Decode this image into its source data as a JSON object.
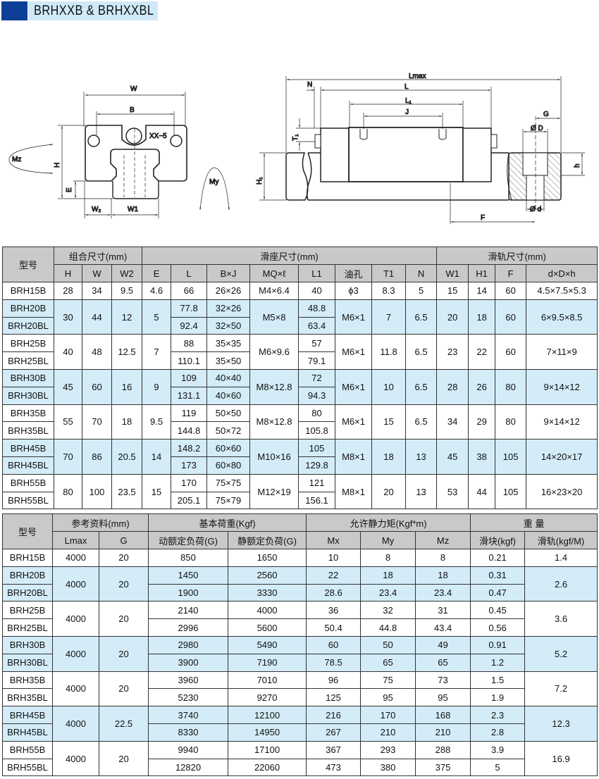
{
  "title": "BRHXXB & BRHXXBL",
  "colors": {
    "title_block": "#0d3f96",
    "title_bar": "#cfe9f8",
    "header_bg": "#c9c9c9",
    "row_highlight": "#d3ecf8",
    "dimension_label": "#2a9fd6"
  },
  "drawing": {
    "front": {
      "W": "W",
      "B": "B",
      "screw": "XX−5",
      "Mz": "Mz",
      "H": "H",
      "E": "E",
      "W2": "W₂",
      "W1": "W1",
      "My": "My"
    },
    "side": {
      "Lmax": "Lmax",
      "N": "N",
      "L": "L",
      "L1": "L₁",
      "J": "J",
      "T1": "T₁",
      "H1": "H₁",
      "G": "G",
      "D": "Ø D",
      "h": "h",
      "d": "Ø d",
      "F": "F"
    }
  },
  "table1": {
    "model_header": "型号",
    "group_headers": [
      {
        "label": "组合尺寸(mm)",
        "span": 3
      },
      {
        "label": "滑座尺寸(mm)",
        "span": 8
      },
      {
        "label": "滑轨尺寸(mm)",
        "span": 4
      }
    ],
    "columns": [
      "H",
      "W",
      "W2",
      "E",
      "L",
      "B×J",
      "MQ×ℓ",
      "L1",
      "油孔",
      "T1",
      "N",
      "W1",
      "H1",
      "F",
      "d×D×h"
    ],
    "groups": [
      {
        "cells": [
          [
            "BRH15B"
          ],
          "28",
          "34",
          "9.5",
          "4.6",
          [
            "66"
          ],
          [
            "26×26"
          ],
          "M4×6.4",
          [
            "40"
          ],
          "ϕ3",
          "8.3",
          "5",
          "15",
          "14",
          "60",
          "4.5×7.5×5.3"
        ]
      },
      {
        "cells": [
          [
            "BRH20B",
            "BRH20BL"
          ],
          "30",
          "44",
          "12",
          "5",
          [
            "77.8",
            "92.4"
          ],
          [
            "32×26",
            "32×50"
          ],
          "M5×8",
          [
            "48.8",
            "63.4"
          ],
          "M6×1",
          "7",
          "6.5",
          "20",
          "18",
          "60",
          "6×9.5×8.5"
        ]
      },
      {
        "cells": [
          [
            "BRH25B",
            "BRH25BL"
          ],
          "40",
          "48",
          "12.5",
          "7",
          [
            "88",
            "110.1"
          ],
          [
            "35×35",
            "35×50"
          ],
          "M6×9.6",
          [
            "57",
            "79.1"
          ],
          "M6×1",
          "11.8",
          "6.5",
          "23",
          "22",
          "60",
          "7×11×9"
        ]
      },
      {
        "cells": [
          [
            "BRH30B",
            "BRH30BL"
          ],
          "45",
          "60",
          "16",
          "9",
          [
            "109",
            "131.1"
          ],
          [
            "40×40",
            "40×60"
          ],
          "M8×12.8",
          [
            "72",
            "94.3"
          ],
          "M6×1",
          "10",
          "6.5",
          "28",
          "26",
          "80",
          "9×14×12"
        ]
      },
      {
        "cells": [
          [
            "BRH35B",
            "BRH35BL"
          ],
          "55",
          "70",
          "18",
          "9.5",
          [
            "119",
            "144.8"
          ],
          [
            "50×50",
            "50×72"
          ],
          "M8×12.8",
          [
            "80",
            "105.8"
          ],
          "M6×1",
          "15",
          "6.5",
          "34",
          "29",
          "80",
          "9×14×12"
        ]
      },
      {
        "cells": [
          [
            "BRH45B",
            "BRH45BL"
          ],
          "70",
          "86",
          "20.5",
          "14",
          [
            "148.2",
            "173"
          ],
          [
            "60×60",
            "60×80"
          ],
          "M10×16",
          [
            "105",
            "129.8"
          ],
          "M8×1",
          "18",
          "13",
          "45",
          "38",
          "105",
          "14×20×17"
        ]
      },
      {
        "cells": [
          [
            "BRH55B",
            "BRH55BL"
          ],
          "80",
          "100",
          "23.5",
          "15",
          [
            "170",
            "205.1"
          ],
          [
            "75×75",
            "75×79"
          ],
          "M12×19",
          [
            "121",
            "156.1"
          ],
          "M8×1",
          "20",
          "13",
          "53",
          "44",
          "105",
          "16×23×20"
        ]
      }
    ]
  },
  "table2": {
    "model_header": "型号",
    "group_headers": [
      {
        "label": "参考资料(mm)",
        "span": 2
      },
      {
        "label": "基本荷重(Kgf)",
        "span": 2
      },
      {
        "label": "允许静力矩(Kgf*m)",
        "span": 3
      },
      {
        "label": "重 量",
        "span": 2
      }
    ],
    "columns": [
      "Lmax",
      "G",
      "动额定负荷(G)",
      "静额定负荷(G)",
      "Mx",
      "My",
      "Mz",
      "滑块(kgf)",
      "滑轨(kgf/M)"
    ],
    "groups": [
      {
        "cells": [
          [
            "BRH15B"
          ],
          "4000",
          "20",
          [
            "850"
          ],
          [
            "1650"
          ],
          [
            "10"
          ],
          [
            "8"
          ],
          [
            "8"
          ],
          [
            "0.21"
          ],
          "1.4"
        ]
      },
      {
        "cells": [
          [
            "BRH20B",
            "BRH20BL"
          ],
          "4000",
          "20",
          [
            "1450",
            "1900"
          ],
          [
            "2560",
            "3330"
          ],
          [
            "22",
            "28.6"
          ],
          [
            "18",
            "23.4"
          ],
          [
            "18",
            "23.4"
          ],
          [
            "0.31",
            "0.47"
          ],
          "2.6"
        ]
      },
      {
        "cells": [
          [
            "BRH25B",
            "BRH25BL"
          ],
          "4000",
          "20",
          [
            "2140",
            "2996"
          ],
          [
            "4000",
            "5600"
          ],
          [
            "36",
            "50.4"
          ],
          [
            "32",
            "44.8"
          ],
          [
            "31",
            "43.4"
          ],
          [
            "0.45",
            "0.56"
          ],
          "3.6"
        ]
      },
      {
        "cells": [
          [
            "BRH30B",
            "BRH30BL"
          ],
          "4000",
          "20",
          [
            "2980",
            "3900"
          ],
          [
            "5490",
            "7190"
          ],
          [
            "60",
            "78.5"
          ],
          [
            "50",
            "65"
          ],
          [
            "49",
            "65"
          ],
          [
            "0.91",
            "1.2"
          ],
          "5.2"
        ]
      },
      {
        "cells": [
          [
            "BRH35B",
            "BRH35BL"
          ],
          "4000",
          "20",
          [
            "3960",
            "5230"
          ],
          [
            "7010",
            "9270"
          ],
          [
            "96",
            "125"
          ],
          [
            "75",
            "95"
          ],
          [
            "73",
            "95"
          ],
          [
            "1.5",
            "1.9"
          ],
          "7.2"
        ]
      },
      {
        "cells": [
          [
            "BRH45B",
            "BRH45BL"
          ],
          "4000",
          "22.5",
          [
            "3740",
            "8330"
          ],
          [
            "12100",
            "14950"
          ],
          [
            "216",
            "267"
          ],
          [
            "170",
            "210"
          ],
          [
            "168",
            "210"
          ],
          [
            "2.3",
            "2.8"
          ],
          "12.3"
        ]
      },
      {
        "cells": [
          [
            "BRH55B",
            "BRH55BL"
          ],
          "4000",
          "20",
          [
            "9940",
            "12820"
          ],
          [
            "17100",
            "22060"
          ],
          [
            "367",
            "473"
          ],
          [
            "293",
            "380"
          ],
          [
            "288",
            "375"
          ],
          [
            "3.9",
            "5"
          ],
          "16.9"
        ]
      }
    ]
  }
}
